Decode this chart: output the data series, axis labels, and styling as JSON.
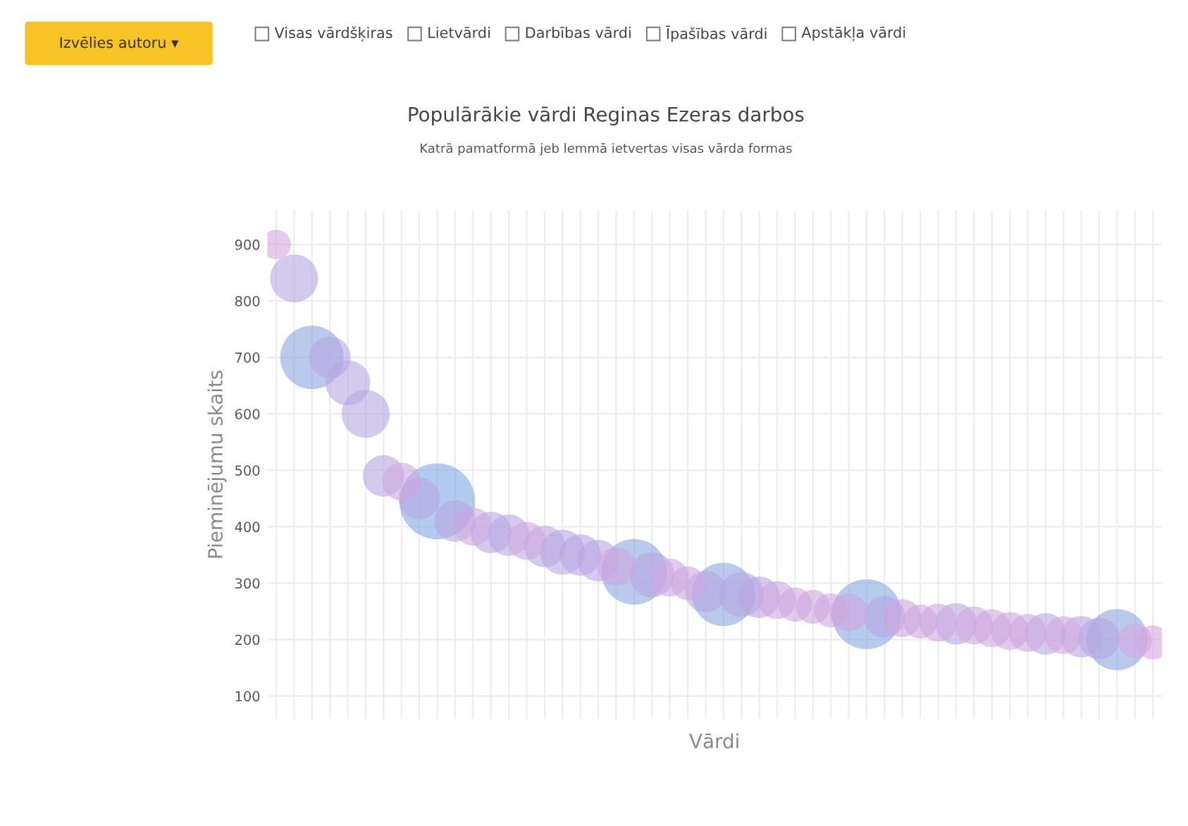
{
  "chart_data": {
    "type": "bubble",
    "title": "Populārākie vārdi Reginas Ezeras darbos",
    "subtitle": "Katrā pamatformā jeb lemmā ietvertas visas vārda formas",
    "xlabel": "Vārdi",
    "ylabel": "Pieminējumu skaits",
    "annotations": [
      "Izvēlies autoru ▾",
      "Visas vārdšķiras",
      "Lietvārdi",
      "Darbības vārdi",
      "Īpašības vārdi",
      "Apstākļa vārdi"
    ],
    "categories": [
      null,
      null,
      null,
      null,
      null,
      null,
      null,
      null,
      null,
      null,
      null,
      null,
      null,
      null,
      null,
      null,
      null,
      null,
      null,
      null,
      null,
      null,
      null,
      null,
      null,
      null,
      null,
      null,
      null,
      null,
      null,
      null,
      null,
      null,
      null,
      null,
      null,
      null,
      null,
      null,
      null,
      null,
      null,
      null,
      null,
      null,
      null,
      null,
      null,
      null
    ],
    "values": [
      900,
      840,
      700,
      700,
      655,
      600,
      490,
      480,
      450,
      445,
      410,
      400,
      390,
      385,
      375,
      365,
      355,
      350,
      340,
      330,
      320,
      315,
      310,
      300,
      285,
      280,
      280,
      275,
      270,
      262,
      258,
      252,
      248,
      245,
      240,
      238,
      232,
      230,
      228,
      225,
      220,
      215,
      212,
      210,
      208,
      205,
      202,
      200,
      198,
      195
    ],
    "sizes": [
      0.15,
      0.4,
      0.7,
      0.3,
      0.35,
      0.4,
      0.3,
      0.25,
      0.3,
      1,
      0.3,
      0.25,
      0.3,
      0.3,
      0.25,
      0.3,
      0.35,
      0.3,
      0.3,
      0.25,
      0.75,
      0.35,
      0.25,
      0.2,
      0.3,
      0.7,
      0.35,
      0.3,
      0.25,
      0.2,
      0.2,
      0.2,
      0.25,
      0.85,
      0.3,
      0.25,
      0.2,
      0.25,
      0.3,
      0.25,
      0.25,
      0.25,
      0.25,
      0.3,
      0.25,
      0.3,
      0.3,
      0.65,
      0.2,
      0.2
    ],
    "colors": [
      "#d6a6e0",
      "#b8a6e2",
      "#8aa6e0",
      "#b8a6e2",
      "#b8a6e2",
      "#b8a6e2",
      "#b8a6e2",
      "#cfa6e0",
      "#b8a6e2",
      "#7fa8e2",
      "#b8a6e2",
      "#cfa6e0",
      "#b8a6e2",
      "#b8a6e2",
      "#cfa6e0",
      "#b8a6e2",
      "#b8a6e2",
      "#b8a6e2",
      "#b8a6e2",
      "#cfa6e0",
      "#8aa6e0",
      "#b8a6e2",
      "#cfa6e0",
      "#cfa6e0",
      "#b8a6e2",
      "#8aa6e0",
      "#b8a6e2",
      "#b8a6e2",
      "#cfa6e0",
      "#cfa6e0",
      "#cfa6e0",
      "#cfa6e0",
      "#cfa6e0",
      "#86a8e2",
      "#b8a6e2",
      "#cfa6e0",
      "#cfa6e0",
      "#cfa6e0",
      "#b8a6e2",
      "#cfa6e0",
      "#cfa6e0",
      "#cfa6e0",
      "#cfa6e0",
      "#b8a6e2",
      "#cfa6e0",
      "#b8a6e2",
      "#b8a6e2",
      "#8aa6e0",
      "#d6a6e0",
      "#d6a6e0"
    ],
    "ylim": [
      60,
      960
    ],
    "yticks": [
      100,
      200,
      300,
      400,
      500,
      600,
      700,
      800,
      900
    ],
    "grid": true
  }
}
